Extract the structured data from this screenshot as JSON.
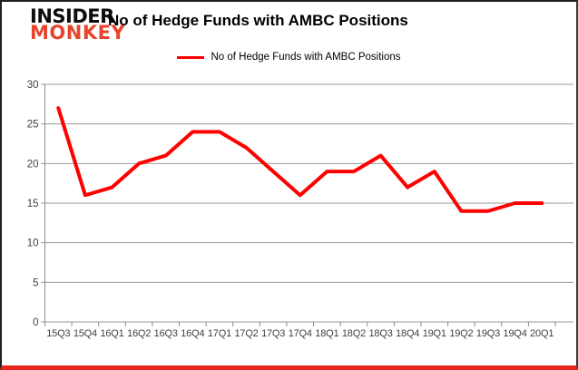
{
  "header": {
    "logo_top": "INSIDER",
    "logo_bottom": "MONKEY",
    "title": "No of Hedge Funds with AMBC Positions"
  },
  "legend": {
    "label": "No of Hedge Funds with AMBC Positions"
  },
  "colors": {
    "line": "#ff0000",
    "logo_red": "#e8432d",
    "grid": "#9a9a9a",
    "axis": "#8c8c8c",
    "axis_text": "#404040",
    "frame_bottom": "#e8251c"
  },
  "chart_data": {
    "type": "line",
    "title": "No of Hedge Funds with AMBC Positions",
    "categories": [
      "15Q3",
      "15Q4",
      "16Q1",
      "16Q2",
      "16Q3",
      "16Q4",
      "17Q1",
      "17Q2",
      "17Q3",
      "17Q4",
      "18Q1",
      "18Q2",
      "18Q3",
      "18Q4",
      "19Q1",
      "19Q2",
      "19Q3",
      "19Q4",
      "20Q1"
    ],
    "series": [
      {
        "name": "No of Hedge Funds with AMBC Positions",
        "values": [
          27,
          16,
          17,
          20,
          21,
          24,
          24,
          22,
          19,
          16,
          19,
          19,
          21,
          17,
          19,
          14,
          14,
          15,
          15
        ]
      }
    ],
    "xlabel": "",
    "ylabel": "",
    "ylim": [
      0,
      30
    ],
    "yticks": [
      0,
      5,
      10,
      15,
      20,
      25,
      30
    ],
    "grid": true,
    "legend_position": "top-center"
  }
}
